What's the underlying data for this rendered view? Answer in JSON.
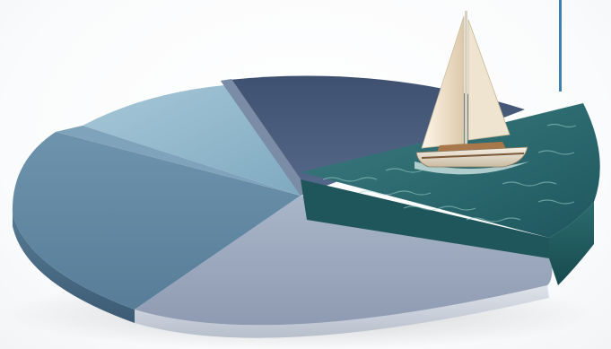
{
  "header": {
    "title_fragment": ""
  },
  "scene": {
    "subject": "pie-chart-sculpture-with-sailboat",
    "colors": {
      "slice_dark_navy": "#4a5f7c",
      "slice_light_blue": "#8fb5c9",
      "slice_steel_blue": "#6a8fa8",
      "slice_lavender_gray": "#9aa8be",
      "slice_ocean": "#2f6c74",
      "accent_line": "#3f7fb3"
    }
  }
}
